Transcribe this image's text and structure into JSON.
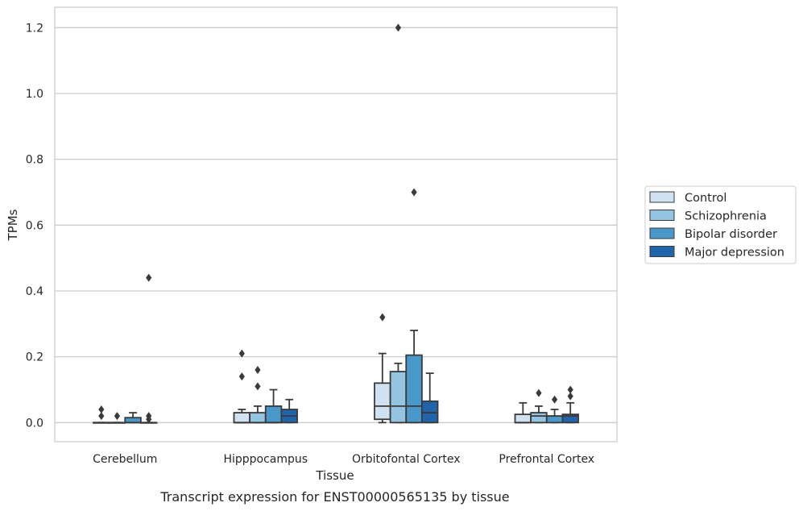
{
  "chart_data": {
    "type": "box",
    "title": "",
    "caption": "Transcript expression for ENST00000565135 by tissue",
    "xlabel": "Tissue",
    "ylabel": "TPMs",
    "ylim": [
      -0.058,
      1.262
    ],
    "yticks": [
      0.0,
      0.2,
      0.4,
      0.6,
      0.8,
      1.0,
      1.2
    ],
    "ytick_labels": [
      "0.0",
      "0.2",
      "0.4",
      "0.6",
      "0.8",
      "1.0",
      "1.2"
    ],
    "grid": "horizontal",
    "legend_position": "right",
    "categories": [
      "Cerebellum",
      "Hipppocampus",
      "Orbitofontal Cortex",
      "Prefrontal Cortex"
    ],
    "series": [
      {
        "name": "Control",
        "color": "#d0e1f2",
        "boxes": [
          {
            "whislo": 0.0,
            "q1": 0.0,
            "med": 0.0,
            "q3": 0.0,
            "whishi": 0.0,
            "fliers": [
              0.02,
              0.04
            ]
          },
          {
            "whislo": 0.0,
            "q1": 0.0,
            "med": 0.0,
            "q3": 0.03,
            "whishi": 0.04,
            "fliers": [
              0.14,
              0.21
            ]
          },
          {
            "whislo": 0.0,
            "q1": 0.01,
            "med": 0.05,
            "q3": 0.12,
            "whishi": 0.21,
            "fliers": [
              0.32
            ]
          },
          {
            "whislo": 0.0,
            "q1": 0.0,
            "med": 0.0,
            "q3": 0.025,
            "whishi": 0.06,
            "fliers": []
          }
        ]
      },
      {
        "name": "Schizophrenia",
        "color": "#94c4df",
        "boxes": [
          {
            "whislo": 0.0,
            "q1": 0.0,
            "med": 0.0,
            "q3": 0.0,
            "whishi": 0.0,
            "fliers": [
              0.02
            ]
          },
          {
            "whislo": 0.0,
            "q1": 0.0,
            "med": 0.0,
            "q3": 0.03,
            "whishi": 0.05,
            "fliers": [
              0.11,
              0.16
            ]
          },
          {
            "whislo": 0.0,
            "q1": 0.0,
            "med": 0.05,
            "q3": 0.155,
            "whishi": 0.18,
            "fliers": [
              1.2
            ]
          },
          {
            "whislo": 0.0,
            "q1": 0.0,
            "med": 0.02,
            "q3": 0.03,
            "whishi": 0.05,
            "fliers": [
              0.09
            ]
          }
        ]
      },
      {
        "name": "Bipolar disorder",
        "color": "#4a98c9",
        "boxes": [
          {
            "whislo": 0.0,
            "q1": 0.0,
            "med": 0.0,
            "q3": 0.015,
            "whishi": 0.03,
            "fliers": []
          },
          {
            "whislo": 0.0,
            "q1": 0.0,
            "med": 0.0,
            "q3": 0.05,
            "whishi": 0.1,
            "fliers": []
          },
          {
            "whislo": 0.0,
            "q1": 0.0,
            "med": 0.05,
            "q3": 0.205,
            "whishi": 0.28,
            "fliers": [
              0.7
            ]
          },
          {
            "whislo": 0.0,
            "q1": 0.0,
            "med": 0.02,
            "q3": 0.02,
            "whishi": 0.04,
            "fliers": [
              0.07
            ]
          }
        ]
      },
      {
        "name": "Major depression",
        "color": "#2264ab",
        "boxes": [
          {
            "whislo": 0.0,
            "q1": 0.0,
            "med": 0.0,
            "q3": 0.0,
            "whishi": 0.0,
            "fliers": [
              0.01,
              0.02,
              0.44
            ]
          },
          {
            "whislo": 0.0,
            "q1": 0.0,
            "med": 0.02,
            "q3": 0.04,
            "whishi": 0.07,
            "fliers": []
          },
          {
            "whislo": 0.0,
            "q1": 0.0,
            "med": 0.03,
            "q3": 0.065,
            "whishi": 0.15,
            "fliers": []
          },
          {
            "whislo": 0.0,
            "q1": 0.0,
            "med": 0.02,
            "q3": 0.025,
            "whishi": 0.06,
            "fliers": [
              0.08,
              0.1
            ]
          }
        ]
      }
    ]
  }
}
